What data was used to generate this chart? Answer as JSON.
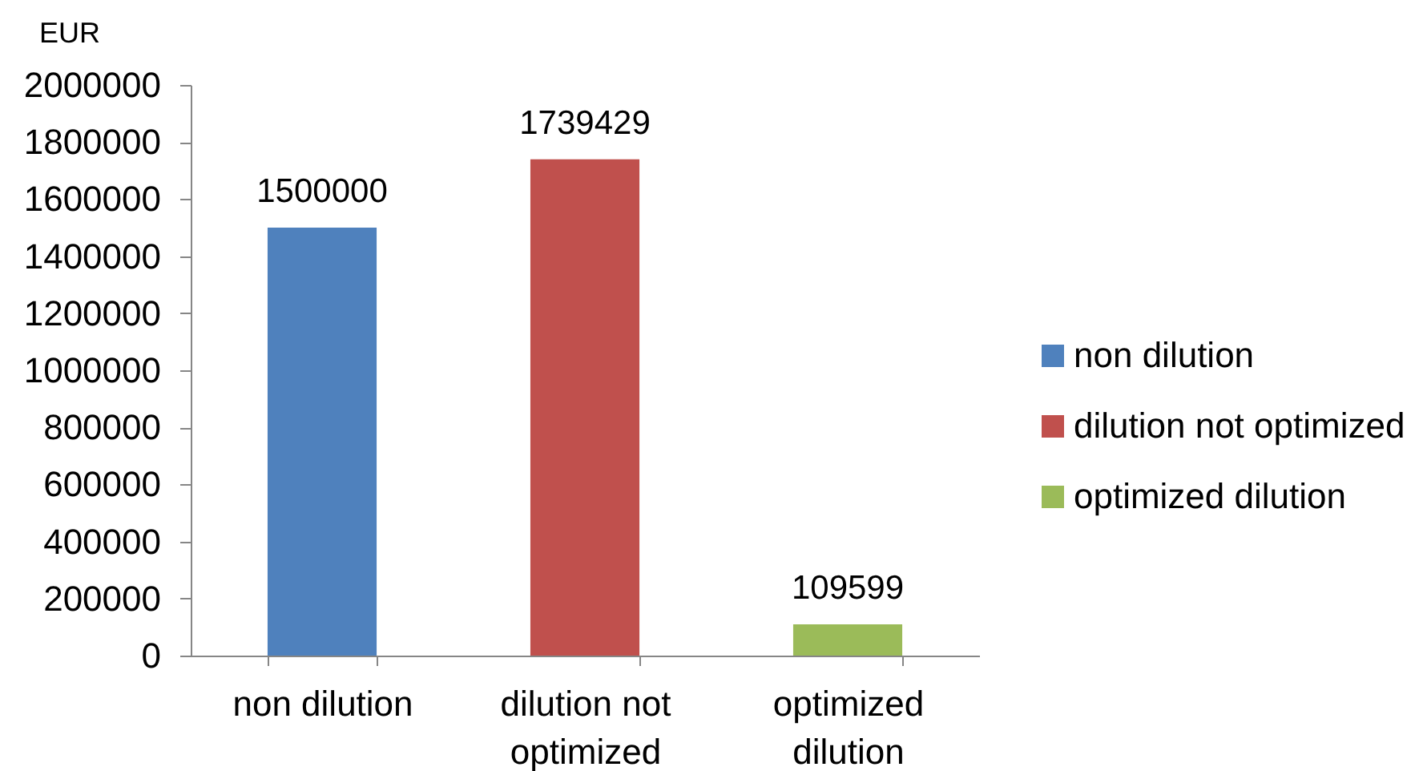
{
  "chart_data": {
    "type": "bar",
    "ylabel": "EUR",
    "categories": [
      "non dilution",
      "dilution not optimized",
      "optimized dilution"
    ],
    "series": [
      {
        "name": "non dilution",
        "color": "#4f81bd",
        "values": [
          1500000,
          null,
          null
        ]
      },
      {
        "name": "dilution not optimized",
        "color": "#c0504d",
        "values": [
          null,
          1739429,
          null
        ]
      },
      {
        "name": "optimized dilution",
        "color": "#9bbb59",
        "values": [
          null,
          null,
          109599
        ]
      }
    ],
    "ylim": [
      0,
      2000000
    ],
    "yticks": [
      0,
      200000,
      400000,
      600000,
      800000,
      1000000,
      1200000,
      1400000,
      1600000,
      1800000,
      2000000
    ],
    "data_labels": true,
    "legend": "right",
    "grid": false
  }
}
